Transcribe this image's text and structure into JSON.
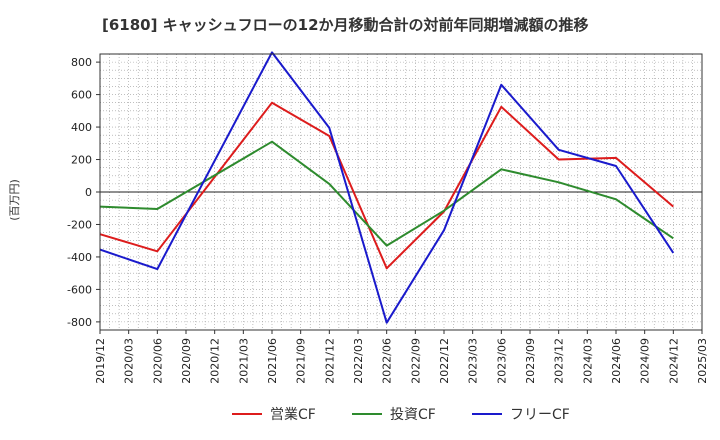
{
  "chart_data": {
    "type": "line",
    "title": "[6180]  キャッシュフローの12か月移動合計の対前年同期増減額の推移",
    "ylabel": "(百万円)",
    "xlabel": "",
    "ylim": [
      -850,
      850
    ],
    "yticks": [
      800,
      600,
      400,
      200,
      0,
      -200,
      -400,
      -600,
      -800
    ],
    "categories": [
      "2019/12",
      "2020/03",
      "2020/06",
      "2020/09",
      "2020/12",
      "2021/03",
      "2021/06",
      "2021/09",
      "2021/12",
      "2022/03",
      "2022/06",
      "2022/09",
      "2022/12",
      "2023/03",
      "2023/06",
      "2023/09",
      "2023/12",
      "2024/03",
      "2024/06",
      "2024/09",
      "2024/12",
      "2025/03"
    ],
    "grid": true,
    "legend_position": "bottom",
    "series": [
      {
        "name": "営業CF",
        "color": "#dd1c1c",
        "points": [
          {
            "x": "2019/12",
            "y": -260
          },
          {
            "x": "2020/06",
            "y": -365
          },
          {
            "x": "2021/06",
            "y": 550
          },
          {
            "x": "2021/12",
            "y": 345
          },
          {
            "x": "2022/06",
            "y": -470
          },
          {
            "x": "2022/12",
            "y": -120
          },
          {
            "x": "2023/06",
            "y": 525
          },
          {
            "x": "2023/12",
            "y": 200
          },
          {
            "x": "2024/06",
            "y": 210
          },
          {
            "x": "2024/12",
            "y": -90
          }
        ]
      },
      {
        "name": "投資CF",
        "color": "#2e8b2e",
        "points": [
          {
            "x": "2019/12",
            "y": -90
          },
          {
            "x": "2020/06",
            "y": -105
          },
          {
            "x": "2021/06",
            "y": 310
          },
          {
            "x": "2021/12",
            "y": 50
          },
          {
            "x": "2022/06",
            "y": -330
          },
          {
            "x": "2022/12",
            "y": -115
          },
          {
            "x": "2023/06",
            "y": 140
          },
          {
            "x": "2023/12",
            "y": 60
          },
          {
            "x": "2024/06",
            "y": -45
          },
          {
            "x": "2024/12",
            "y": -285
          }
        ]
      },
      {
        "name": "フリーCF",
        "color": "#1a1acc",
        "points": [
          {
            "x": "2019/12",
            "y": -355
          },
          {
            "x": "2020/06",
            "y": -475
          },
          {
            "x": "2021/06",
            "y": 860
          },
          {
            "x": "2021/12",
            "y": 395
          },
          {
            "x": "2022/06",
            "y": -805
          },
          {
            "x": "2022/12",
            "y": -235
          },
          {
            "x": "2023/06",
            "y": 660
          },
          {
            "x": "2023/12",
            "y": 260
          },
          {
            "x": "2024/06",
            "y": 160
          },
          {
            "x": "2024/12",
            "y": -375
          }
        ]
      }
    ]
  }
}
